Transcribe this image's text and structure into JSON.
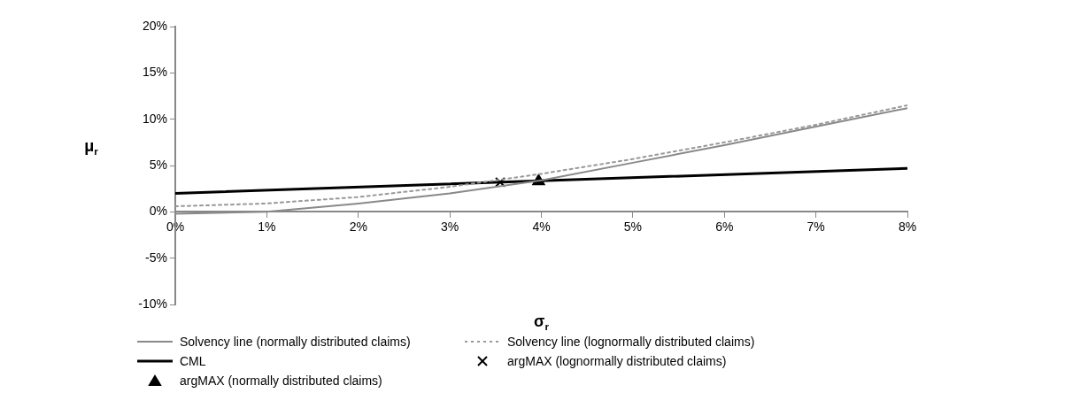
{
  "chart_data": {
    "type": "line",
    "xlabel": "σ$_{r}$",
    "ylabel": "μ$_{r}$",
    "xlim": [
      0,
      8
    ],
    "xticks": [
      {
        "value": 0,
        "label": "0%"
      },
      {
        "value": 1,
        "label": "1%"
      },
      {
        "value": 2,
        "label": "2%"
      },
      {
        "value": 3,
        "label": "3%"
      },
      {
        "value": 4,
        "label": "4%"
      },
      {
        "value": 5,
        "label": "5%"
      },
      {
        "value": 6,
        "label": "6%"
      },
      {
        "value": 7,
        "label": "7%"
      },
      {
        "value": 8,
        "label": "8%"
      }
    ],
    "ylim": [
      -10,
      20
    ],
    "yticks": [
      {
        "value": -10,
        "label": "-10%"
      },
      {
        "value": -5,
        "label": "-5%"
      },
      {
        "value": 0,
        "label": "0%"
      },
      {
        "value": 5,
        "label": "5%"
      },
      {
        "value": 10,
        "label": "10%"
      },
      {
        "value": 15,
        "label": "15%"
      },
      {
        "value": 20,
        "label": "20%"
      }
    ],
    "grid": false,
    "legend": "bottom",
    "series": [
      {
        "name": "Solvency line (normally distributed claims)",
        "color": "#898989",
        "line_style": "solid",
        "marker": "none",
        "x": [
          0,
          1,
          2,
          3,
          4,
          5,
          6,
          7,
          8
        ],
        "values": [
          -0.2,
          0,
          0.9,
          2,
          3.4,
          5.3,
          7.2,
          9.2,
          11.2
        ]
      },
      {
        "name": "Solvency line (lognormally distributed claims)",
        "color": "#999999",
        "line_style": "dotted",
        "marker": "none",
        "x": [
          0,
          1,
          2,
          3,
          4,
          5,
          6,
          7,
          8
        ],
        "values": [
          0.6,
          0.9,
          1.6,
          2.7,
          4.1,
          5.7,
          7.5,
          9.4,
          11.5
        ]
      },
      {
        "name": "CML",
        "color": "#000000",
        "line_style": "solid",
        "marker": "none",
        "x": [
          0,
          8
        ],
        "values": [
          2,
          4.7
        ]
      },
      {
        "name": "argMAX (lognormally distributed claims)",
        "type": "scatter",
        "color": "#000000",
        "marker": "cross",
        "x": [
          3.55
        ],
        "values": [
          3.2
        ]
      },
      {
        "name": "argMAX (normally distributed claims)",
        "type": "scatter",
        "color": "#000000",
        "marker": "triangle",
        "x": [
          3.97
        ],
        "values": [
          3.3
        ]
      }
    ]
  }
}
